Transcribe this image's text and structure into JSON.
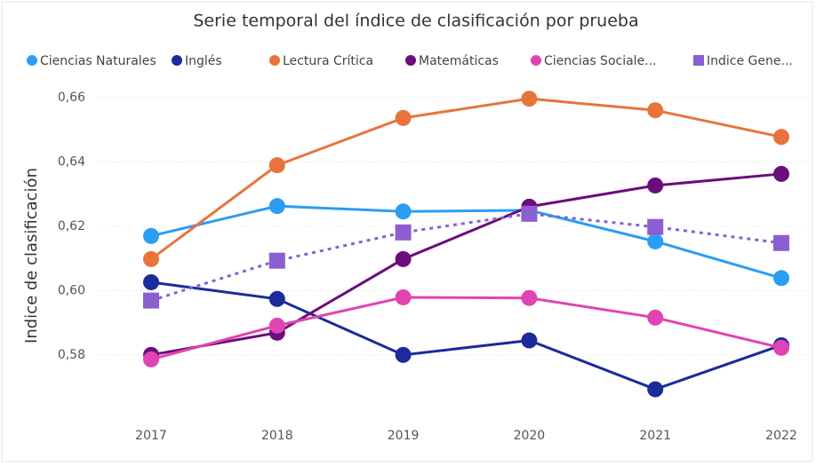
{
  "chart_data": {
    "type": "line",
    "title": "Serie temporal del índice de clasificación por prueba",
    "y_label": "Indice de clasificación",
    "categories": [
      "2017",
      "2018",
      "2019",
      "2020",
      "2021",
      "2022"
    ],
    "series": [
      {
        "name": "Ciencias Naturales",
        "color": "#2b9df4",
        "marker": "circle",
        "values": [
          0.617,
          0.6263,
          0.6246,
          0.625,
          0.6153,
          0.6039
        ]
      },
      {
        "name": "Inglés",
        "color": "#1b2b9c",
        "marker": "circle",
        "values": [
          0.6026,
          0.5974,
          0.58,
          0.5845,
          0.5693,
          0.583
        ]
      },
      {
        "name": "Lectura Crítica",
        "color": "#e8743b",
        "marker": "circle",
        "values": [
          0.6098,
          0.639,
          0.6537,
          0.6597,
          0.6561,
          0.6478
        ]
      },
      {
        "name": "Matemáticas",
        "color": "#6b0d7c",
        "marker": "circle",
        "values": [
          0.58,
          0.5869,
          0.6098,
          0.6261,
          0.6327,
          0.6363
        ]
      },
      {
        "name": "Ciencias Sociale...",
        "color": "#e044b2",
        "marker": "circle",
        "values": [
          0.5786,
          0.5891,
          0.5979,
          0.5977,
          0.5916,
          0.5822
        ]
      },
      {
        "name": "Indice Gene...",
        "color": "#8b5fd2",
        "marker": "square",
        "dashed": true,
        "values": [
          0.5969,
          0.6093,
          0.6181,
          0.6239,
          0.6198,
          0.6148
        ]
      }
    ],
    "ylim": [
      0.562,
      0.665
    ],
    "yticks": [
      {
        "value": 0.58,
        "label": "0,58"
      },
      {
        "value": 0.6,
        "label": "0,60"
      },
      {
        "value": 0.62,
        "label": "0,62"
      },
      {
        "value": 0.64,
        "label": "0,64"
      },
      {
        "value": 0.66,
        "label": "0,66"
      }
    ],
    "grid": true
  }
}
